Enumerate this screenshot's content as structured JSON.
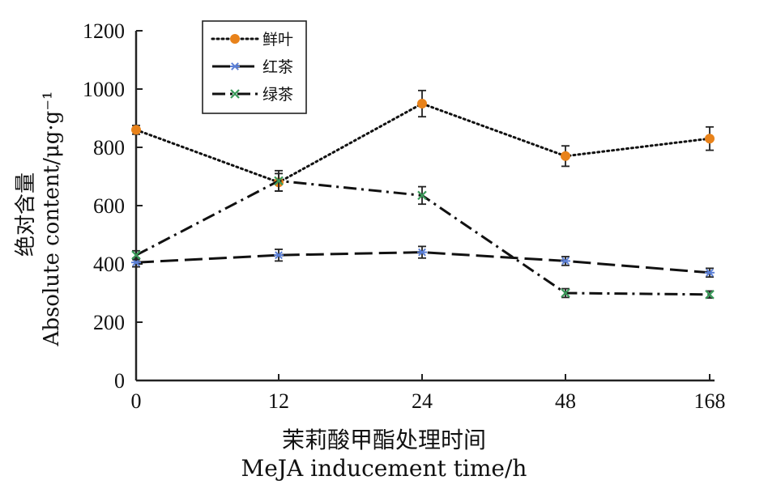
{
  "chart_data": {
    "type": "line",
    "categories": [
      "0",
      "12",
      "24",
      "48",
      "168"
    ],
    "yticks": [
      "0",
      "200",
      "400",
      "600",
      "800",
      "1000",
      "1200"
    ],
    "ylim": [
      0,
      1200
    ],
    "ylabel": "绝对含量 Absolute content/μg·g⁻¹",
    "ylabel_cn": "绝对含量",
    "ylabel_en": "Absolute content/μg·g⁻¹",
    "xlabel_cn": "茉莉酸甲酯处理时间",
    "xlabel_en": "MeJA inducement time/h",
    "legend_position": "top-left",
    "series": [
      {
        "name": "鲜叶",
        "values": [
          860,
          680,
          950,
          770,
          830
        ],
        "errors": [
          15,
          30,
          45,
          35,
          40
        ],
        "color": "#e8821a",
        "dash": "dotted",
        "marker": "dot"
      },
      {
        "name": "红茶",
        "values": [
          405,
          430,
          440,
          410,
          370
        ],
        "errors": [
          15,
          20,
          20,
          15,
          15
        ],
        "color": "#5b7fd6",
        "dash": "long-dash",
        "marker": "asterisk"
      },
      {
        "name": "绿茶",
        "values": [
          430,
          685,
          635,
          300,
          295
        ],
        "errors": [
          15,
          35,
          30,
          15,
          12
        ],
        "color": "#3a9a5a",
        "dash": "dash-dot",
        "marker": "x"
      }
    ]
  }
}
